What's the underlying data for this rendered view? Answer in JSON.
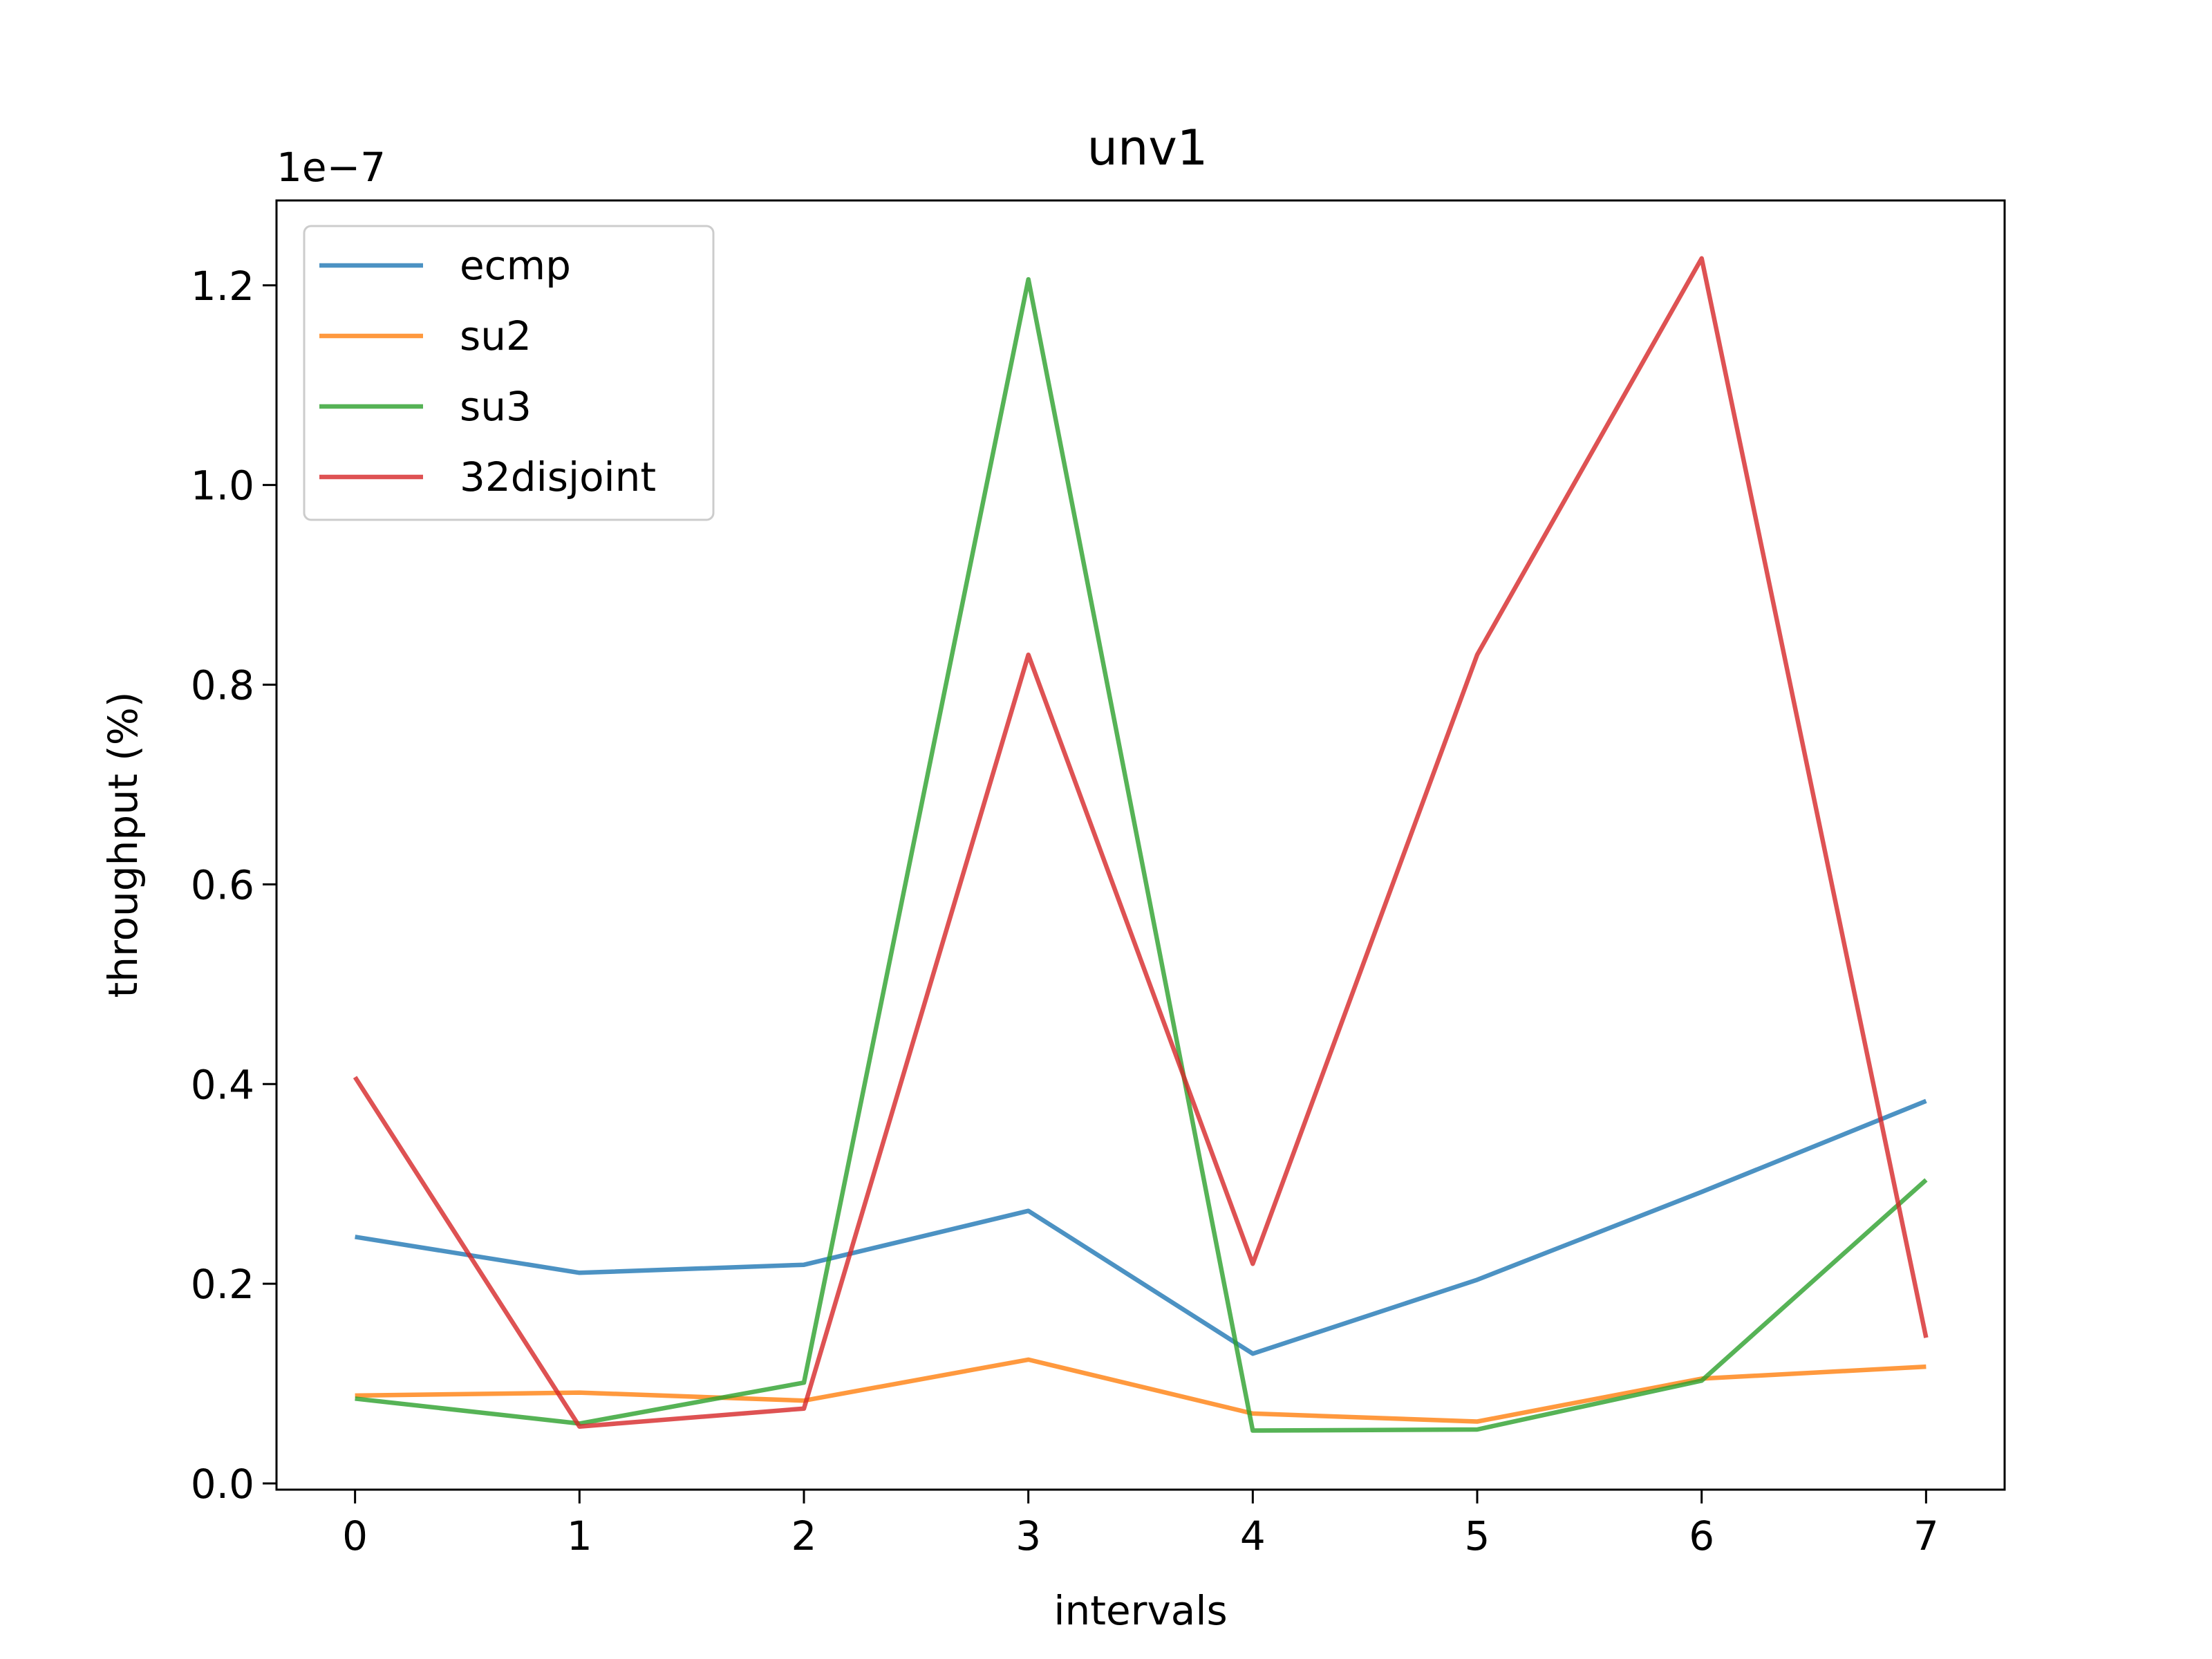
{
  "chart_data": {
    "type": "line",
    "title": "unv1",
    "xlabel": "intervals",
    "ylabel": "throughput (%)",
    "y_offset_label": "1e−7",
    "x": [
      0,
      1,
      2,
      3,
      4,
      5,
      6,
      7
    ],
    "xlim": [
      -0.35,
      7.35
    ],
    "ylim": [
      -0.0062,
      1.285
    ],
    "y_scale_factor": "1e-7",
    "x_ticks": [
      0,
      1,
      2,
      3,
      4,
      5,
      6,
      7
    ],
    "x_tick_labels": [
      "0",
      "1",
      "2",
      "3",
      "4",
      "5",
      "6",
      "7"
    ],
    "y_ticks": [
      0.0,
      0.2,
      0.4,
      0.6,
      0.8,
      1.0,
      1.2
    ],
    "y_tick_labels": [
      "0.0",
      "0.2",
      "0.4",
      "0.6",
      "0.8",
      "1.0",
      "1.2"
    ],
    "grid": false,
    "legend_position": "upper-left",
    "series": [
      {
        "name": "ecmp",
        "color": "#1f77b4",
        "values": [
          0.247,
          0.211,
          0.219,
          0.273,
          0.13,
          0.204,
          0.292,
          0.383
        ]
      },
      {
        "name": "su2",
        "color": "#ff7f0e",
        "values": [
          0.088,
          0.091,
          0.083,
          0.124,
          0.07,
          0.062,
          0.105,
          0.117
        ]
      },
      {
        "name": "su3",
        "color": "#2ca02c",
        "values": [
          0.085,
          0.06,
          0.101,
          1.206,
          0.053,
          0.054,
          0.103,
          0.304
        ]
      },
      {
        "name": "32disjoint",
        "color": "#d62728",
        "values": [
          0.407,
          0.057,
          0.075,
          0.83,
          0.22,
          0.83,
          1.227,
          0.146
        ]
      }
    ]
  }
}
